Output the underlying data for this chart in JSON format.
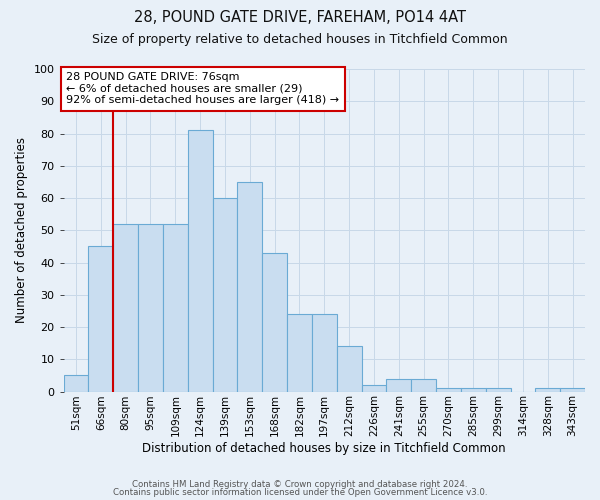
{
  "title1": "28, POUND GATE DRIVE, FAREHAM, PO14 4AT",
  "title2": "Size of property relative to detached houses in Titchfield Common",
  "xlabel": "Distribution of detached houses by size in Titchfield Common",
  "ylabel": "Number of detached properties",
  "categories": [
    "51sqm",
    "66sqm",
    "80sqm",
    "95sqm",
    "109sqm",
    "124sqm",
    "139sqm",
    "153sqm",
    "168sqm",
    "182sqm",
    "197sqm",
    "212sqm",
    "226sqm",
    "241sqm",
    "255sqm",
    "270sqm",
    "285sqm",
    "299sqm",
    "314sqm",
    "328sqm",
    "343sqm"
  ],
  "values": [
    5,
    45,
    52,
    52,
    52,
    81,
    60,
    65,
    43,
    24,
    24,
    14,
    2,
    4,
    4,
    1,
    1,
    1,
    0,
    1,
    1
  ],
  "bar_color": "#c9ddf0",
  "bar_edge_color": "#6aaad4",
  "grid_color": "#c8d8e8",
  "background_color": "#e8f0f8",
  "vline_color": "#cc0000",
  "vline_x_index": 2.0,
  "annotation_text_line1": "28 POUND GATE DRIVE: 76sqm",
  "annotation_text_line2": "← 6% of detached houses are smaller (29)",
  "annotation_text_line3": "92% of semi-detached houses are larger (418) →",
  "footer1": "Contains HM Land Registry data © Crown copyright and database right 2024.",
  "footer2": "Contains public sector information licensed under the Open Government Licence v3.0.",
  "ylim": [
    0,
    100
  ],
  "yticks": [
    0,
    10,
    20,
    30,
    40,
    50,
    60,
    70,
    80,
    90,
    100
  ]
}
